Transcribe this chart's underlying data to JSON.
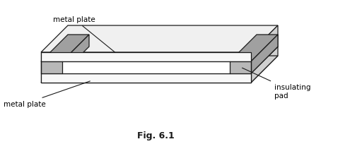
{
  "fig_label": "Fig. 6.1",
  "label_metal_plate_top": "metal plate",
  "label_metal_plate_bottom": "metal plate",
  "label_insulating_pad": "insulating\npad",
  "bg_color": "#ffffff",
  "line_color": "#1a1a1a",
  "pad_fill": "#b8b8b8",
  "pad_fill_dark": "#a0a0a0",
  "top_face_fill": "#f0f0f0",
  "side_face_fill": "#d0d0d0",
  "plate_front_fill": "#f8f8f8",
  "gap_back_fill": "#e0e0e0",
  "annotation_fontsize": 7.5,
  "fig_label_fontsize": 9.0,
  "lw": 0.9
}
